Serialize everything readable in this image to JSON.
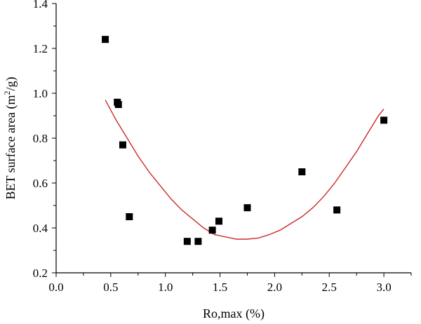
{
  "chart_data": {
    "type": "scatter",
    "xlabel": "Ro,max (%)",
    "ylabel_main": "BET surface area (m",
    "ylabel_sup": "2",
    "ylabel_tail": "/g)",
    "xlim": [
      0.0,
      3.25
    ],
    "ylim": [
      0.2,
      1.4
    ],
    "x_ticks": [
      0.0,
      0.5,
      1.0,
      1.5,
      2.0,
      2.5,
      3.0
    ],
    "x_tick_labels": [
      "0.0",
      "0.5",
      "1.0",
      "1.5",
      "2.0",
      "2.5",
      "3.0"
    ],
    "y_ticks": [
      0.2,
      0.4,
      0.6,
      0.8,
      1.0,
      1.2,
      1.4
    ],
    "y_tick_labels": [
      "0.2",
      "0.4",
      "0.6",
      "0.8",
      "1.0",
      "1.2",
      "1.4"
    ],
    "grid": false,
    "colors": {
      "points": "#000000",
      "fit": "#cc2a2a",
      "axis": "#000000"
    },
    "series": [
      {
        "kind": "points",
        "x": [
          0.45,
          0.56,
          0.57,
          0.61,
          0.67,
          1.2,
          1.3,
          1.43,
          1.49,
          1.75,
          2.25,
          2.57,
          3.0
        ],
        "y": [
          1.24,
          0.96,
          0.95,
          0.77,
          0.45,
          0.34,
          0.34,
          0.39,
          0.43,
          0.49,
          0.65,
          0.48,
          0.88
        ]
      },
      {
        "kind": "fit-curve",
        "x": [
          0.45,
          0.55,
          0.65,
          0.75,
          0.85,
          0.95,
          1.05,
          1.15,
          1.25,
          1.35,
          1.45,
          1.55,
          1.65,
          1.75,
          1.85,
          1.95,
          2.05,
          2.15,
          2.25,
          2.35,
          2.45,
          2.55,
          2.65,
          2.75,
          2.85,
          2.95,
          3.0
        ],
        "y": [
          0.97,
          0.88,
          0.8,
          0.72,
          0.65,
          0.59,
          0.53,
          0.48,
          0.44,
          0.4,
          0.37,
          0.36,
          0.35,
          0.35,
          0.355,
          0.37,
          0.39,
          0.42,
          0.45,
          0.49,
          0.54,
          0.6,
          0.67,
          0.74,
          0.82,
          0.9,
          0.93
        ]
      }
    ]
  }
}
